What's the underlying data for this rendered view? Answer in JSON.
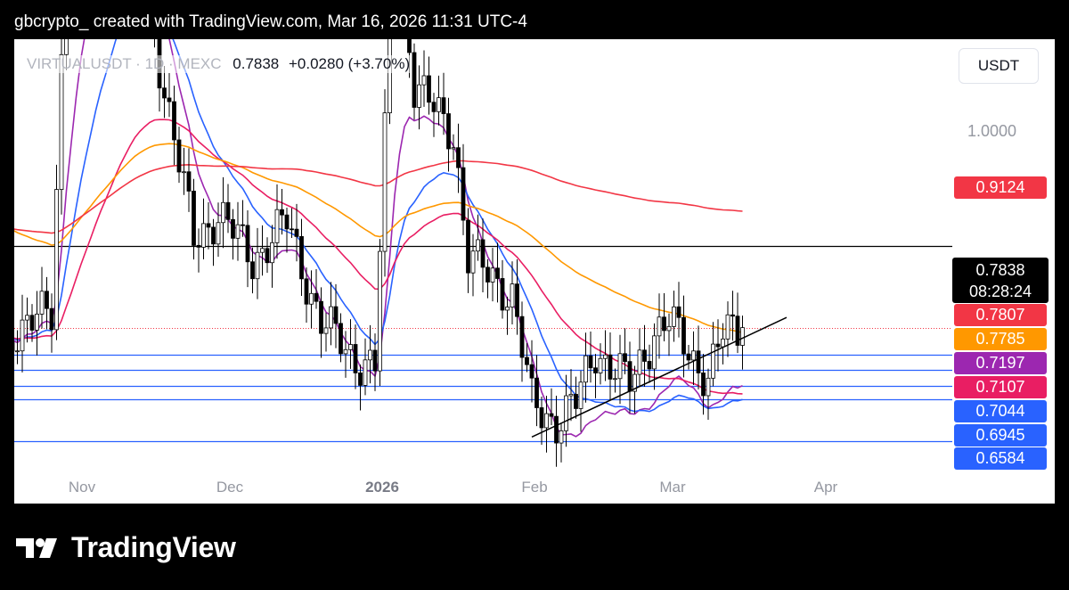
{
  "header": {
    "text": "gbcrypto_ created with TradingView.com, Mar 16, 2026 11:31 UTC-4"
  },
  "legend": {
    "symbol": "VIRTUALUSDT · 1D · MEXC",
    "price": "0.7838",
    "change": "+0.0280 (+3.70%)"
  },
  "axis": {
    "unit_button": "USDT",
    "ticks": [
      "1.0000"
    ]
  },
  "price_box": {
    "price": "0.7838",
    "countdown": "08:28:24"
  },
  "badges": [
    {
      "value": "0.9124",
      "color": "#f23645"
    },
    {
      "value": "0.7807",
      "color": "#f23645"
    },
    {
      "value": "0.7785",
      "color": "#ff9800"
    },
    {
      "value": "0.7197",
      "color": "#9c27b0"
    },
    {
      "value": "0.7107",
      "color": "#e91e63"
    },
    {
      "value": "0.7044",
      "color": "#2962ff"
    },
    {
      "value": "0.6945",
      "color": "#2962ff"
    },
    {
      "value": "0.6584",
      "color": "#2962ff"
    }
  ],
  "x_labels": [
    {
      "text": "Nov",
      "bold": false
    },
    {
      "text": "Dec",
      "bold": false
    },
    {
      "text": "2026",
      "bold": true
    },
    {
      "text": "Feb",
      "bold": false
    },
    {
      "text": "Mar",
      "bold": false
    },
    {
      "text": "Apr",
      "bold": false
    }
  ],
  "footer": {
    "brand": "TradingView"
  },
  "colors": {
    "bull": "#ffffff",
    "bear": "#000000",
    "ema_fast": "#9c27b0",
    "ema_blue": "#2962ff",
    "ema_red": "#e91e63",
    "ema_orange": "#ff9800",
    "ema_long": "#f23645",
    "level_line": "#2962ff"
  },
  "chart_data": {
    "type": "candlestick",
    "symbol": "VIRTUALUSDT",
    "timeframe": "1D",
    "exchange": "MEXC",
    "last_price": 0.7838,
    "x_labels": [
      "Nov",
      "Dec",
      "2026",
      "Feb",
      "Mar",
      "Apr"
    ],
    "horizontal_levels": [
      0.8737,
      0.7838,
      0.7542,
      0.7367,
      0.7197,
      0.7044,
      0.6584
    ],
    "trendline": {
      "from": {
        "date": "2026-02-01",
        "price": 0.663
      },
      "to": {
        "date": "2026-03-25",
        "price": 0.795
      }
    },
    "moving_averages": [
      {
        "color": "#9c27b0",
        "last": 0.7197
      },
      {
        "color": "#2962ff",
        "last": 0.7044
      },
      {
        "color": "#e91e63",
        "last": 0.7107
      },
      {
        "color": "#ff9800",
        "last": 0.7785
      },
      {
        "color": "#f23645",
        "last": 0.9124
      }
    ],
    "waypoints": [
      {
        "date": "2025-10-18",
        "price": 0.78
      },
      {
        "date": "2025-10-26",
        "price": 0.8
      },
      {
        "date": "2025-10-29",
        "price": 1.22
      },
      {
        "date": "2025-11-09",
        "price": 1.3
      },
      {
        "date": "2025-11-18",
        "price": 1.05
      },
      {
        "date": "2025-11-24",
        "price": 0.88
      },
      {
        "date": "2025-11-29",
        "price": 0.91
      },
      {
        "date": "2025-12-06",
        "price": 0.86
      },
      {
        "date": "2025-12-13",
        "price": 0.9
      },
      {
        "date": "2025-12-20",
        "price": 0.79
      },
      {
        "date": "2025-12-27",
        "price": 0.75
      },
      {
        "date": "2025-12-31",
        "price": 0.74
      },
      {
        "date": "2026-01-04",
        "price": 1.25
      },
      {
        "date": "2026-01-08",
        "price": 1.05
      },
      {
        "date": "2026-01-16",
        "price": 1.0
      },
      {
        "date": "2026-01-19",
        "price": 0.86
      },
      {
        "date": "2026-01-24",
        "price": 0.84
      },
      {
        "date": "2026-01-28",
        "price": 0.82
      },
      {
        "date": "2026-02-01",
        "price": 0.7
      },
      {
        "date": "2026-02-06",
        "price": 0.68
      },
      {
        "date": "2026-02-10",
        "price": 0.7
      },
      {
        "date": "2026-02-14",
        "price": 0.76
      },
      {
        "date": "2026-02-21",
        "price": 0.72
      },
      {
        "date": "2026-02-26",
        "price": 0.78
      },
      {
        "date": "2026-03-01",
        "price": 0.79
      },
      {
        "date": "2026-03-06",
        "price": 0.75
      },
      {
        "date": "2026-03-09",
        "price": 0.73
      },
      {
        "date": "2026-03-12",
        "price": 0.775
      },
      {
        "date": "2026-03-16",
        "price": 0.7838
      }
    ]
  }
}
